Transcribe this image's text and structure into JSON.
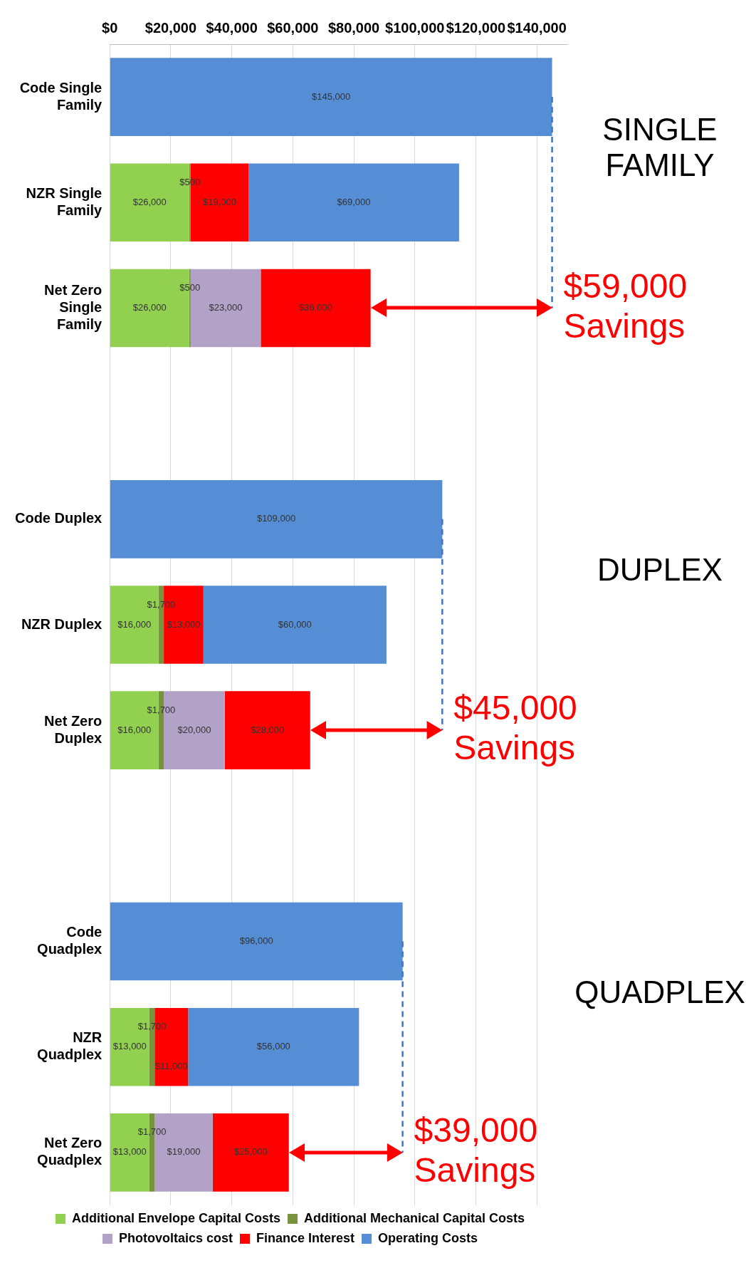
{
  "chart_data": {
    "type": "bar",
    "stacked": true,
    "orientation": "horizontal",
    "categories": [
      "Code Single Family",
      "NZR Single Family",
      "Net Zero Single Family",
      null,
      "Code Duplex",
      "NZR Duplex",
      "Net Zero Duplex",
      null,
      "Code Quadplex",
      "NZR Quadplex",
      "Net Zero Quadplex"
    ],
    "series": [
      {
        "name": "Additional Envelope Capital Costs",
        "color": "#92d050",
        "values": [
          null,
          26000,
          26000,
          null,
          null,
          16000,
          16000,
          null,
          null,
          13000,
          13000
        ],
        "value_labels": [
          null,
          "$26,000",
          "$26,000",
          null,
          null,
          "$16,000",
          "$16,000",
          null,
          null,
          "$13,000",
          "$13,000"
        ]
      },
      {
        "name": "Additional Mechanical Capital Costs",
        "color": "#77933c",
        "values": [
          null,
          500,
          500,
          null,
          null,
          1700,
          1700,
          null,
          null,
          1700,
          1700
        ],
        "value_labels": [
          null,
          "$500",
          "$500",
          null,
          null,
          "$1,700",
          "$1,700",
          null,
          null,
          "$1,700",
          "$1,700"
        ]
      },
      {
        "name": "Photovoltaics cost",
        "color": "#b3a2c7",
        "values": [
          null,
          null,
          23000,
          null,
          null,
          null,
          20000,
          null,
          null,
          null,
          19000
        ],
        "value_labels": [
          null,
          null,
          "$23,000",
          null,
          null,
          null,
          "$20,000",
          null,
          null,
          null,
          "$19,000"
        ]
      },
      {
        "name": "Finance Interest",
        "color": "#ff0000",
        "values": [
          null,
          19000,
          36000,
          null,
          null,
          13000,
          28000,
          null,
          null,
          11000,
          25000
        ],
        "value_labels": [
          null,
          "$19,000",
          "$36,000",
          null,
          null,
          "$13,000",
          "$28,000",
          null,
          null,
          "$11,000",
          "$25,000"
        ]
      },
      {
        "name": "Operating Costs",
        "color": "#558ed5",
        "values": [
          145000,
          69000,
          null,
          null,
          109000,
          60000,
          null,
          null,
          96000,
          56000,
          null
        ],
        "value_labels": [
          "$145,000",
          "$69,000",
          null,
          null,
          "$109,000",
          "$60,000",
          null,
          null,
          "$96,000",
          "$56,000",
          null
        ]
      },
      {
        "type": "line",
        "color": "#4472c4",
        "line_style": "dashed",
        "marker": "none",
        "values": [
          145000,
          145000,
          145000,
          null,
          109000,
          109000,
          109000,
          null,
          96000,
          96000,
          96000
        ]
      }
    ],
    "xlim": [
      0,
      150000
    ],
    "xticks": [
      {
        "value": 0,
        "label": "$0"
      },
      {
        "value": 20000,
        "label": "$20,000"
      },
      {
        "value": 40000,
        "label": "$40,000"
      },
      {
        "value": 60000,
        "label": "$60,000"
      },
      {
        "value": 80000,
        "label": "$80,000"
      },
      {
        "value": 100000,
        "label": "$100,000"
      },
      {
        "value": 120000,
        "label": "$120,000"
      },
      {
        "value": 140000,
        "label": "$140,000"
      }
    ],
    "grid": "x",
    "legend": "bottom",
    "annotations": [
      "SINGLE FAMILY",
      "DUPLEX",
      "QUADPLEX",
      {
        "text": "$59,000 Savings",
        "x": 145000,
        "y": "Net Zero Single Family"
      },
      {
        "text": "$45,000 Savings",
        "x": 109000,
        "y": "Net Zero Duplex"
      },
      {
        "text": "$39,000 Savings",
        "x": 96000,
        "y": "Net Zero Quadplex"
      }
    ]
  }
}
